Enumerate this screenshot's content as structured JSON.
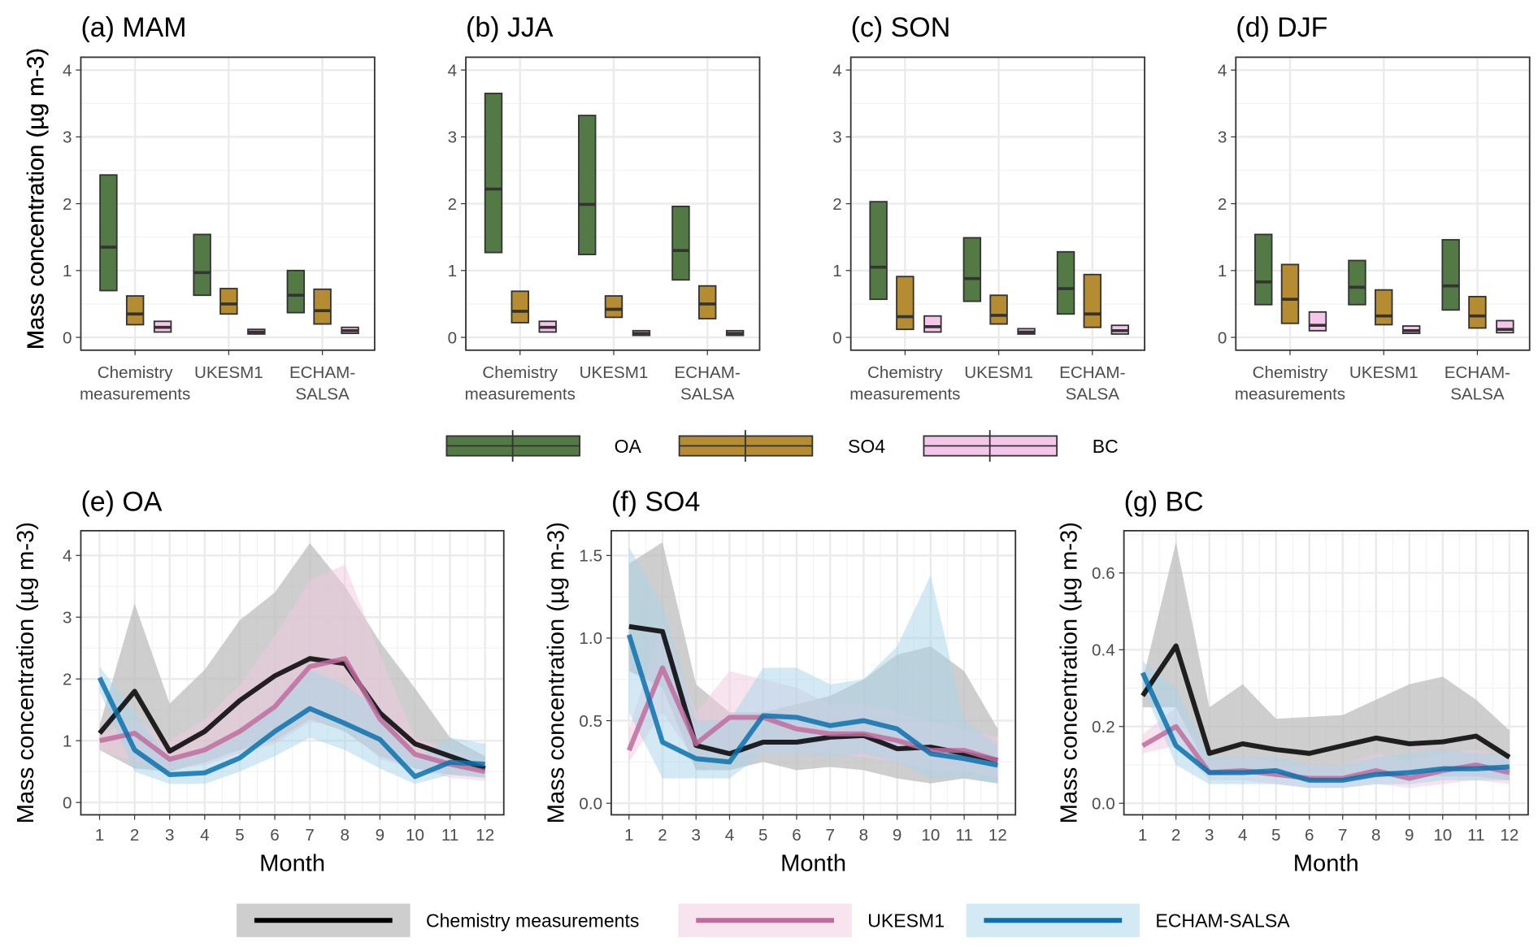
{
  "colors": {
    "OA": "#537a44",
    "SO4": "#b58c31",
    "BC": "#f5c6ea",
    "chem": "#000000",
    "chem_band": "#bdbdbd",
    "ukesm": "#c06c9d",
    "ukesm_band": "#efc9dd",
    "echam": "#0b72ad",
    "echam_band": "#a8d3ea"
  },
  "box_legend": {
    "labels": [
      "OA",
      "SO4",
      "BC"
    ]
  },
  "line_legend": {
    "labels": [
      "Chemistry measurements",
      "UKESM1",
      "ECHAM-SALSA"
    ]
  },
  "chart_data": [
    {
      "type": "box",
      "title": "(a) MAM",
      "ylabel": "Mass concentration (µg m-3)",
      "ylim": [
        -0.2,
        4.2
      ],
      "yticks": [
        "0",
        "1",
        "2",
        "3",
        "4"
      ],
      "categories": [
        [
          "Chemistry",
          "measurements"
        ],
        [
          "UKESM1",
          ""
        ],
        [
          "ECHAM-",
          "SALSA"
        ]
      ],
      "series": {
        "OA": [
          [
            0.7,
            1.35,
            2.43
          ],
          [
            0.63,
            0.97,
            1.54
          ],
          [
            0.37,
            0.63,
            1.0
          ]
        ],
        "SO4": [
          [
            0.19,
            0.35,
            0.62
          ],
          [
            0.35,
            0.5,
            0.73
          ],
          [
            0.2,
            0.4,
            0.72
          ]
        ],
        "BC": [
          [
            0.08,
            0.15,
            0.24
          ],
          [
            0.05,
            0.08,
            0.12
          ],
          [
            0.06,
            0.1,
            0.15
          ]
        ]
      }
    },
    {
      "type": "box",
      "title": "(b) JJA",
      "ylabel": "Mass concentration (µg m-3)",
      "ylim": [
        -0.2,
        4.2
      ],
      "yticks": [
        "0",
        "1",
        "2",
        "3",
        "4"
      ],
      "categories": [
        [
          "Chemistry",
          "measurements"
        ],
        [
          "UKESM1",
          ""
        ],
        [
          "ECHAM-",
          "SALSA"
        ]
      ],
      "series": {
        "OA": [
          [
            1.27,
            2.22,
            3.65
          ],
          [
            1.24,
            1.99,
            3.32
          ],
          [
            0.86,
            1.3,
            1.96
          ]
        ],
        "SO4": [
          [
            0.22,
            0.39,
            0.69
          ],
          [
            0.3,
            0.42,
            0.62
          ],
          [
            0.28,
            0.5,
            0.77
          ]
        ],
        "BC": [
          [
            0.08,
            0.15,
            0.24
          ],
          [
            0.03,
            0.06,
            0.1
          ],
          [
            0.03,
            0.06,
            0.1
          ]
        ]
      }
    },
    {
      "type": "box",
      "title": "(c) SON",
      "ylabel": "Mass concentration (µg m-3)",
      "ylim": [
        -0.2,
        4.2
      ],
      "yticks": [
        "0",
        "1",
        "2",
        "3",
        "4"
      ],
      "categories": [
        [
          "Chemistry",
          "measurements"
        ],
        [
          "UKESM1",
          ""
        ],
        [
          "ECHAM-",
          "SALSA"
        ]
      ],
      "series": {
        "OA": [
          [
            0.57,
            1.05,
            2.03
          ],
          [
            0.54,
            0.88,
            1.49
          ],
          [
            0.35,
            0.73,
            1.28
          ]
        ],
        "SO4": [
          [
            0.12,
            0.31,
            0.91
          ],
          [
            0.2,
            0.33,
            0.63
          ],
          [
            0.15,
            0.35,
            0.94
          ]
        ],
        "BC": [
          [
            0.08,
            0.16,
            0.32
          ],
          [
            0.05,
            0.08,
            0.13
          ],
          [
            0.05,
            0.1,
            0.18
          ]
        ]
      }
    },
    {
      "type": "box",
      "title": "(d) DJF",
      "ylabel": "Mass concentration (µg m-3)",
      "ylim": [
        -0.2,
        4.2
      ],
      "yticks": [
        "0",
        "1",
        "2",
        "3",
        "4"
      ],
      "categories": [
        [
          "Chemistry",
          "measurements"
        ],
        [
          "UKESM1",
          ""
        ],
        [
          "ECHAM-",
          "SALSA"
        ]
      ],
      "series": {
        "OA": [
          [
            0.49,
            0.83,
            1.54
          ],
          [
            0.49,
            0.75,
            1.15
          ],
          [
            0.41,
            0.77,
            1.46
          ]
        ],
        "SO4": [
          [
            0.21,
            0.57,
            1.09
          ],
          [
            0.19,
            0.32,
            0.71
          ],
          [
            0.14,
            0.32,
            0.61
          ]
        ],
        "BC": [
          [
            0.1,
            0.18,
            0.38
          ],
          [
            0.06,
            0.1,
            0.17
          ],
          [
            0.07,
            0.12,
            0.25
          ]
        ]
      }
    },
    {
      "type": "line",
      "title": "(e) OA",
      "xlabel": "Month",
      "ylabel": "Mass concentration (µg m-3)",
      "x": [
        1,
        2,
        3,
        4,
        5,
        6,
        7,
        8,
        9,
        10,
        11,
        12
      ],
      "ylim": [
        -0.2,
        4.4
      ],
      "yticks": [
        0,
        1,
        2,
        3,
        4
      ],
      "series": [
        {
          "name": "Chemistry measurements",
          "values": [
            1.12,
            1.8,
            0.83,
            1.15,
            1.65,
            2.05,
            2.33,
            2.25,
            1.45,
            0.95,
            0.75,
            0.55
          ],
          "low": [
            0.85,
            0.55,
            0.5,
            0.65,
            0.85,
            1.0,
            1.35,
            1.15,
            0.75,
            0.55,
            0.45,
            0.4
          ],
          "high": [
            1.25,
            3.22,
            1.6,
            2.15,
            2.95,
            3.4,
            4.2,
            3.5,
            2.6,
            1.85,
            1.05,
            0.75
          ]
        },
        {
          "name": "UKESM1",
          "values": [
            1.0,
            1.12,
            0.7,
            0.85,
            1.15,
            1.55,
            2.2,
            2.33,
            1.35,
            0.78,
            0.62,
            0.5
          ],
          "low": [
            0.85,
            0.65,
            0.55,
            0.6,
            0.8,
            0.95,
            1.3,
            1.25,
            0.7,
            0.55,
            0.4,
            0.35
          ],
          "high": [
            1.1,
            1.35,
            1.0,
            1.35,
            1.9,
            2.7,
            3.6,
            3.85,
            2.4,
            1.05,
            0.85,
            0.7
          ]
        },
        {
          "name": "ECHAM-SALSA",
          "values": [
            2.02,
            0.85,
            0.45,
            0.48,
            0.72,
            1.15,
            1.52,
            1.28,
            1.02,
            0.42,
            0.65,
            0.62
          ],
          "low": [
            1.8,
            0.5,
            0.3,
            0.3,
            0.5,
            0.75,
            1.05,
            0.85,
            0.55,
            0.3,
            0.45,
            0.4
          ],
          "high": [
            2.2,
            1.45,
            0.7,
            0.8,
            1.1,
            1.6,
            2.15,
            1.9,
            1.5,
            0.7,
            1.05,
            0.95
          ]
        }
      ]
    },
    {
      "type": "line",
      "title": "(f) SO4",
      "xlabel": "Month",
      "ylabel": "Mass concentration (µg m-3)",
      "x": [
        1,
        2,
        3,
        4,
        5,
        6,
        7,
        8,
        9,
        10,
        11,
        12
      ],
      "ylim": [
        -0.07,
        1.65
      ],
      "yticks": [
        0.0,
        0.5,
        1.0,
        1.5
      ],
      "series": [
        {
          "name": "Chemistry measurements",
          "values": [
            1.07,
            1.04,
            0.35,
            0.3,
            0.37,
            0.37,
            0.4,
            0.41,
            0.33,
            0.34,
            0.3,
            0.26
          ],
          "low": [
            0.8,
            0.7,
            0.2,
            0.2,
            0.25,
            0.2,
            0.22,
            0.2,
            0.15,
            0.12,
            0.15,
            0.12
          ],
          "high": [
            1.45,
            1.58,
            0.72,
            0.55,
            0.55,
            0.6,
            0.65,
            0.75,
            0.9,
            0.95,
            0.8,
            0.45
          ]
        },
        {
          "name": "UKESM1",
          "values": [
            0.32,
            0.82,
            0.36,
            0.52,
            0.52,
            0.45,
            0.42,
            0.42,
            0.38,
            0.32,
            0.32,
            0.26
          ],
          "low": [
            0.25,
            0.55,
            0.25,
            0.3,
            0.3,
            0.3,
            0.3,
            0.28,
            0.25,
            0.2,
            0.2,
            0.15
          ],
          "high": [
            0.45,
            1.1,
            0.55,
            0.8,
            0.75,
            0.7,
            0.6,
            0.6,
            0.55,
            0.5,
            0.45,
            0.4
          ]
        },
        {
          "name": "ECHAM-SALSA",
          "values": [
            1.02,
            0.37,
            0.27,
            0.25,
            0.53,
            0.52,
            0.47,
            0.5,
            0.45,
            0.3,
            0.27,
            0.23
          ],
          "low": [
            0.55,
            0.15,
            0.15,
            0.15,
            0.3,
            0.3,
            0.28,
            0.3,
            0.25,
            0.15,
            0.15,
            0.12
          ],
          "high": [
            1.55,
            1.2,
            0.5,
            0.5,
            0.82,
            0.82,
            0.72,
            0.75,
            0.95,
            1.38,
            0.5,
            0.35
          ]
        }
      ]
    },
    {
      "type": "line",
      "title": "(g) BC",
      "xlabel": "Month",
      "ylabel": "Mass concentration (µg m-3)",
      "x": [
        1,
        2,
        3,
        4,
        5,
        6,
        7,
        8,
        9,
        10,
        11,
        12
      ],
      "ylim": [
        -0.03,
        0.71
      ],
      "yticks": [
        0.0,
        0.2,
        0.4,
        0.6
      ],
      "series": [
        {
          "name": "Chemistry measurements",
          "values": [
            0.28,
            0.41,
            0.13,
            0.155,
            0.14,
            0.13,
            0.15,
            0.17,
            0.155,
            0.16,
            0.175,
            0.12
          ],
          "low": [
            0.25,
            0.25,
            0.08,
            0.09,
            0.08,
            0.06,
            0.06,
            0.07,
            0.07,
            0.07,
            0.07,
            0.06
          ],
          "high": [
            0.32,
            0.68,
            0.25,
            0.31,
            0.22,
            0.225,
            0.23,
            0.27,
            0.31,
            0.33,
            0.27,
            0.19
          ]
        },
        {
          "name": "UKESM1",
          "values": [
            0.15,
            0.2,
            0.08,
            0.085,
            0.075,
            0.065,
            0.065,
            0.085,
            0.065,
            0.085,
            0.1,
            0.08
          ],
          "low": [
            0.13,
            0.15,
            0.06,
            0.06,
            0.05,
            0.04,
            0.04,
            0.05,
            0.04,
            0.05,
            0.06,
            0.05
          ],
          "high": [
            0.18,
            0.25,
            0.11,
            0.12,
            0.11,
            0.1,
            0.1,
            0.13,
            0.11,
            0.13,
            0.14,
            0.12
          ]
        },
        {
          "name": "ECHAM-SALSA",
          "values": [
            0.34,
            0.15,
            0.08,
            0.08,
            0.085,
            0.06,
            0.06,
            0.075,
            0.08,
            0.09,
            0.09,
            0.095
          ],
          "low": [
            0.3,
            0.1,
            0.05,
            0.05,
            0.05,
            0.04,
            0.04,
            0.05,
            0.05,
            0.06,
            0.06,
            0.06
          ],
          "high": [
            0.37,
            0.3,
            0.12,
            0.12,
            0.12,
            0.1,
            0.1,
            0.12,
            0.13,
            0.14,
            0.13,
            0.13
          ]
        }
      ]
    }
  ]
}
